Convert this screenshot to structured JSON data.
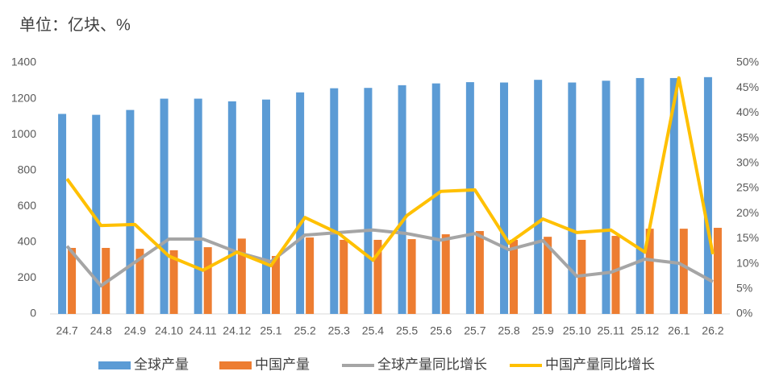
{
  "chart_data": {
    "type": "bar",
    "title": "单位：亿块、%",
    "categories": [
      "24.7",
      "24.8",
      "24.9",
      "24.10",
      "24.11",
      "24.12",
      "25.1",
      "25.2",
      "25.3",
      "25.4",
      "25.5",
      "25.6",
      "25.7",
      "25.8",
      "25.9",
      "25.10",
      "25.11",
      "25.12",
      "26.1",
      "26.2"
    ],
    "series": [
      {
        "name": "全球产量",
        "type": "bar",
        "color": "#5b9bd5",
        "values": [
          1115,
          1110,
          1137,
          1200,
          1200,
          1185,
          1195,
          1235,
          1258,
          1260,
          1275,
          1285,
          1292,
          1290,
          1305,
          1290,
          1300,
          1315,
          1315,
          1320
        ]
      },
      {
        "name": "中国产量",
        "type": "bar",
        "color": "#ed7d31",
        "values": [
          368,
          368,
          363,
          355,
          372,
          420,
          323,
          426,
          413,
          413,
          417,
          444,
          462,
          413,
          430,
          413,
          435,
          475,
          475,
          480
        ]
      },
      {
        "name": "全球产量同比增长",
        "type": "line",
        "axis": "y2",
        "color": "#a5a5a5",
        "values": [
          13.5,
          5.6,
          10.3,
          14.9,
          14.9,
          12.3,
          10.4,
          15.7,
          16.2,
          16.7,
          16.0,
          14.7,
          16.0,
          12.8,
          14.6,
          7.5,
          8.3,
          10.9,
          10.1,
          6.4
        ]
      },
      {
        "name": "中国产量同比增长",
        "type": "line",
        "axis": "y2",
        "color": "#ffc000",
        "values": [
          26.9,
          17.6,
          17.8,
          11.5,
          8.7,
          12.3,
          9.6,
          19.2,
          16.0,
          10.7,
          19.6,
          24.4,
          24.7,
          14.1,
          18.9,
          16.2,
          16.7,
          12.3,
          47.0,
          11.9
        ]
      }
    ],
    "ylim": [
      0,
      1400
    ],
    "yticks": [
      0,
      200,
      400,
      600,
      800,
      1000,
      1200,
      1400
    ],
    "y2lim": [
      0,
      50
    ],
    "y2ticks": [
      {
        "value": 0,
        "label": "0%"
      },
      {
        "value": 5,
        "label": "5%"
      },
      {
        "value": 10,
        "label": "10%"
      },
      {
        "value": 15,
        "label": "15%"
      },
      {
        "value": 20,
        "label": "20%"
      },
      {
        "value": 25,
        "label": "25%"
      },
      {
        "value": 30,
        "label": "30%"
      },
      {
        "value": 35,
        "label": "35%"
      },
      {
        "value": 40,
        "label": "40%"
      },
      {
        "value": 45,
        "label": "45%"
      },
      {
        "value": 50,
        "label": "50%"
      }
    ],
    "grid": false,
    "legend": "bottom"
  }
}
